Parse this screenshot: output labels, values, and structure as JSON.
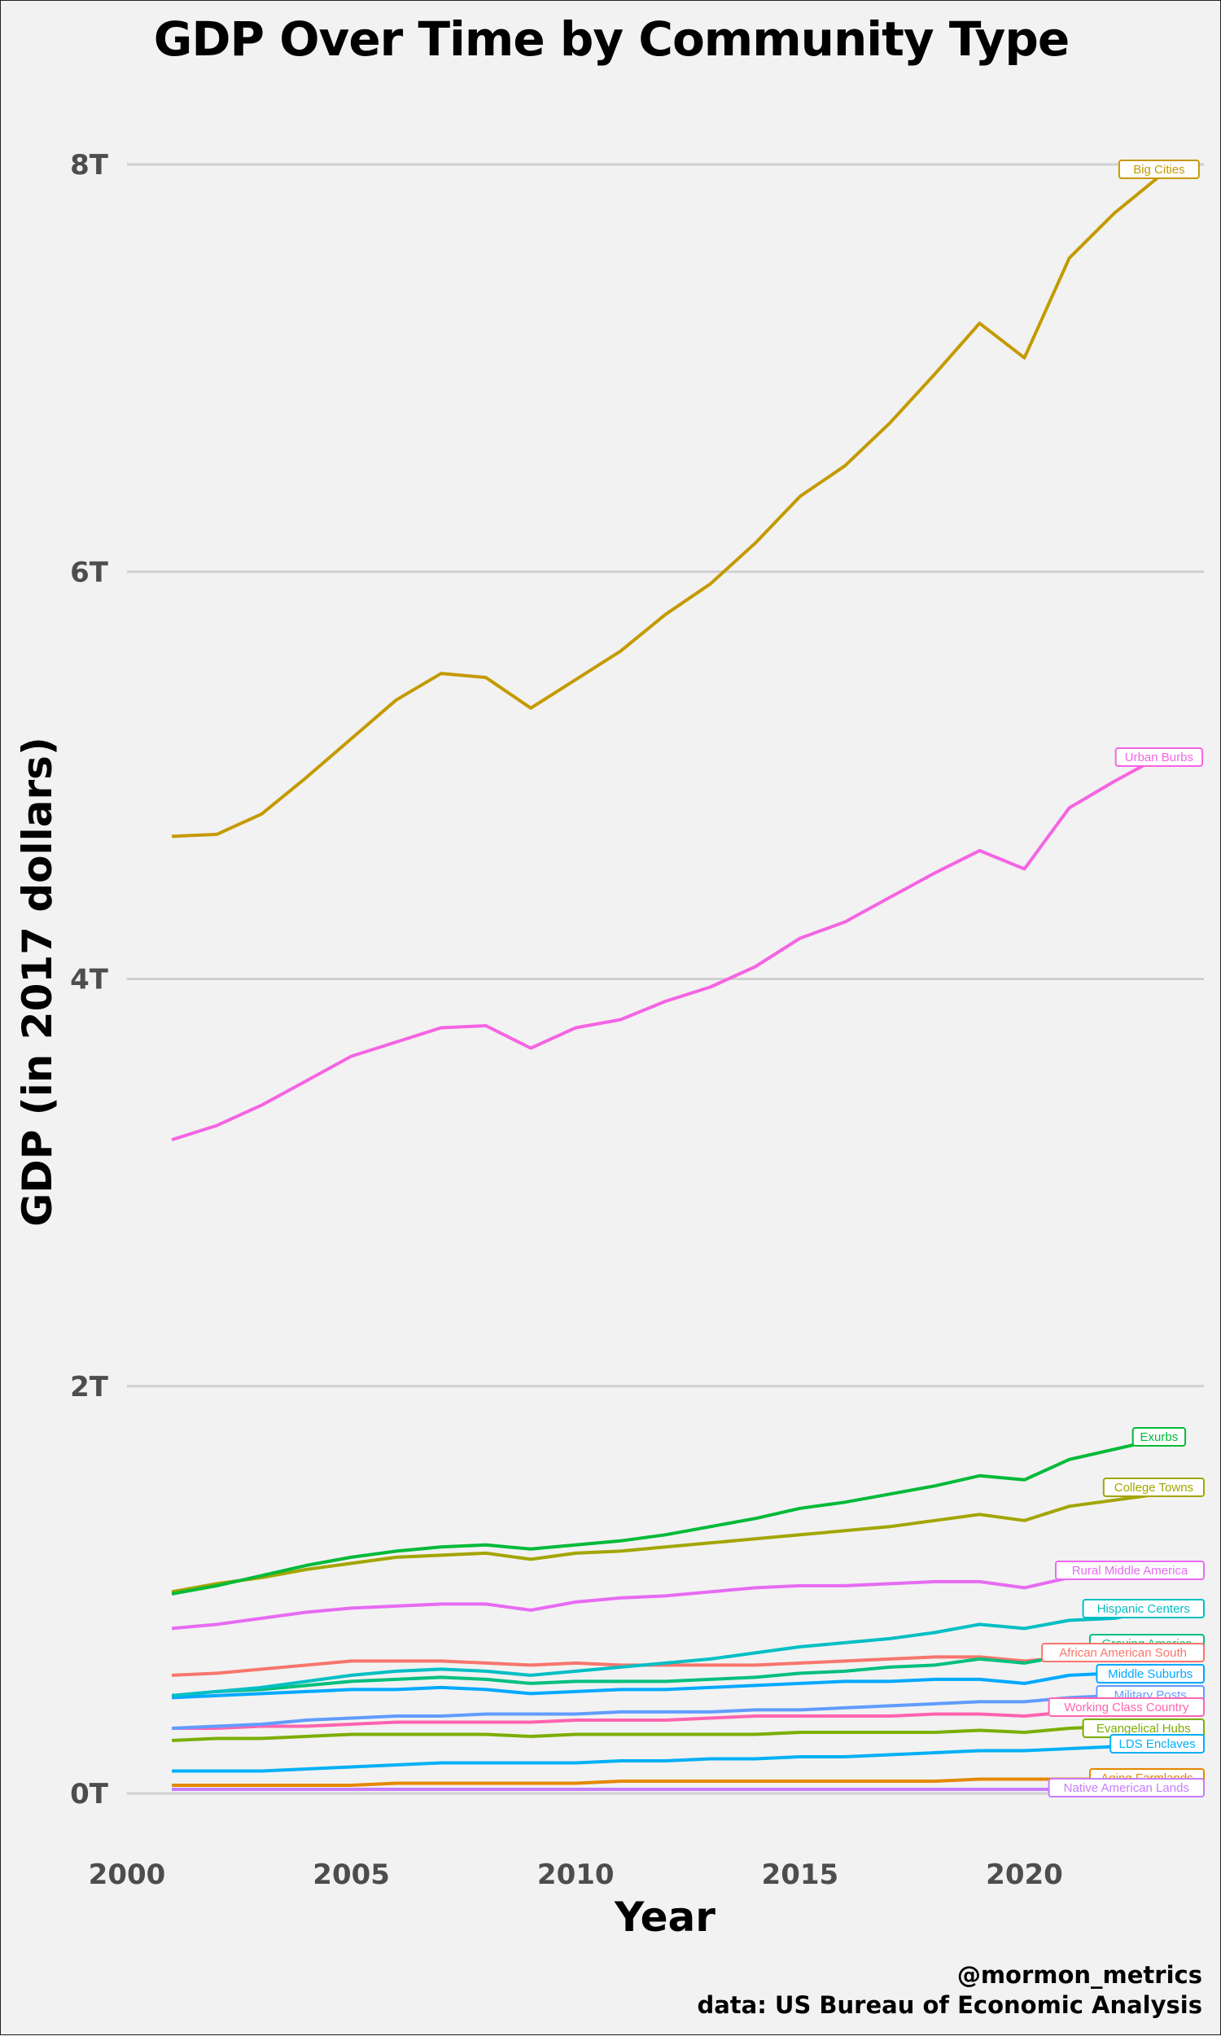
{
  "chart_data": {
    "type": "line",
    "title": "GDP Over Time by Community Type",
    "xlabel": "Year",
    "ylabel": "GDP (in 2017 dollars)",
    "xlim": [
      2000,
      2024
    ],
    "ylim": [
      0,
      8.3
    ],
    "x_ticks": [
      2000,
      2005,
      2010,
      2015,
      2020
    ],
    "x_tick_labels": [
      "2000",
      "2005",
      "2010",
      "2015",
      "2020"
    ],
    "y_ticks": [
      0,
      2,
      4,
      6,
      8
    ],
    "y_tick_labels": [
      "0T",
      "2T",
      "4T",
      "6T",
      "8T"
    ],
    "y_units": "trillions of 2017 dollars",
    "grid": true,
    "legend": "inline labels at line ends",
    "x": [
      2001,
      2002,
      2003,
      2004,
      2005,
      2006,
      2007,
      2008,
      2009,
      2010,
      2011,
      2012,
      2013,
      2014,
      2015,
      2016,
      2017,
      2018,
      2019,
      2020,
      2021,
      2022,
      2023
    ],
    "series": [
      {
        "name": "Big Cities",
        "color": "#C49A00",
        "values": [
          4.7,
          4.71,
          4.81,
          4.99,
          5.18,
          5.37,
          5.5,
          5.48,
          5.33,
          5.47,
          5.61,
          5.79,
          5.94,
          6.14,
          6.37,
          6.52,
          6.73,
          6.97,
          7.22,
          7.05,
          7.54,
          7.76,
          7.94
        ]
      },
      {
        "name": "Urban Burbs",
        "color": "#F564E3",
        "values": [
          3.21,
          3.28,
          3.38,
          3.5,
          3.62,
          3.69,
          3.76,
          3.77,
          3.66,
          3.76,
          3.8,
          3.89,
          3.96,
          4.06,
          4.2,
          4.28,
          4.4,
          4.52,
          4.63,
          4.54,
          4.84,
          4.97,
          5.09
        ]
      },
      {
        "name": "Exurbs",
        "color": "#00BA38",
        "values": [
          0.98,
          1.02,
          1.07,
          1.12,
          1.16,
          1.19,
          1.21,
          1.22,
          1.2,
          1.22,
          1.24,
          1.27,
          1.31,
          1.35,
          1.4,
          1.43,
          1.47,
          1.51,
          1.56,
          1.54,
          1.64,
          1.69,
          1.74
        ]
      },
      {
        "name": "College Towns",
        "color": "#A3A500",
        "values": [
          0.99,
          1.03,
          1.06,
          1.1,
          1.13,
          1.16,
          1.17,
          1.18,
          1.15,
          1.18,
          1.19,
          1.21,
          1.23,
          1.25,
          1.27,
          1.29,
          1.31,
          1.34,
          1.37,
          1.34,
          1.41,
          1.44,
          1.47
        ]
      },
      {
        "name": "Rural Middle America",
        "color": "#E76BF3",
        "values": [
          0.81,
          0.83,
          0.86,
          0.89,
          0.91,
          0.92,
          0.93,
          0.93,
          0.9,
          0.94,
          0.96,
          0.97,
          0.99,
          1.01,
          1.02,
          1.02,
          1.03,
          1.04,
          1.04,
          1.01,
          1.06,
          1.08,
          1.1
        ]
      },
      {
        "name": "Hispanic Centers",
        "color": "#00BFC4",
        "values": [
          0.48,
          0.5,
          0.52,
          0.55,
          0.58,
          0.6,
          0.61,
          0.6,
          0.58,
          0.6,
          0.62,
          0.64,
          0.66,
          0.69,
          0.72,
          0.74,
          0.76,
          0.79,
          0.83,
          0.81,
          0.85,
          0.86,
          0.9
        ]
      },
      {
        "name": "Graying America",
        "color": "#00BF7D",
        "values": [
          0.48,
          0.5,
          0.51,
          0.53,
          0.55,
          0.56,
          0.57,
          0.56,
          0.54,
          0.55,
          0.55,
          0.55,
          0.56,
          0.57,
          0.59,
          0.6,
          0.62,
          0.63,
          0.66,
          0.64,
          0.68,
          0.7,
          0.72
        ]
      },
      {
        "name": "African American South",
        "color": "#F8766D",
        "values": [
          0.58,
          0.59,
          0.61,
          0.63,
          0.65,
          0.65,
          0.65,
          0.64,
          0.63,
          0.64,
          0.63,
          0.63,
          0.63,
          0.63,
          0.64,
          0.65,
          0.66,
          0.67,
          0.67,
          0.65,
          0.67,
          0.68,
          0.69
        ]
      },
      {
        "name": "Middle Suburbs",
        "color": "#00A9FF",
        "values": [
          0.47,
          0.48,
          0.49,
          0.5,
          0.51,
          0.51,
          0.52,
          0.51,
          0.49,
          0.5,
          0.51,
          0.51,
          0.52,
          0.53,
          0.54,
          0.55,
          0.55,
          0.56,
          0.56,
          0.54,
          0.58,
          0.59,
          0.6
        ]
      },
      {
        "name": "Military Posts",
        "color": "#619CFF",
        "values": [
          0.32,
          0.33,
          0.34,
          0.36,
          0.37,
          0.38,
          0.38,
          0.39,
          0.39,
          0.39,
          0.4,
          0.4,
          0.4,
          0.41,
          0.41,
          0.42,
          0.43,
          0.44,
          0.45,
          0.45,
          0.47,
          0.48,
          0.49
        ]
      },
      {
        "name": "Working Class Country",
        "color": "#FF64B0",
        "values": [
          0.32,
          0.32,
          0.33,
          0.33,
          0.34,
          0.35,
          0.35,
          0.35,
          0.35,
          0.36,
          0.36,
          0.36,
          0.37,
          0.38,
          0.38,
          0.38,
          0.38,
          0.39,
          0.39,
          0.38,
          0.4,
          0.41,
          0.42
        ]
      },
      {
        "name": "Evangelical Hubs",
        "color": "#7CAE00",
        "values": [
          0.26,
          0.27,
          0.27,
          0.28,
          0.29,
          0.29,
          0.29,
          0.29,
          0.28,
          0.29,
          0.29,
          0.29,
          0.29,
          0.29,
          0.3,
          0.3,
          0.3,
          0.3,
          0.31,
          0.3,
          0.32,
          0.33,
          0.34
        ]
      },
      {
        "name": "LDS Enclaves",
        "color": "#00B0F6",
        "values": [
          0.11,
          0.11,
          0.11,
          0.12,
          0.13,
          0.14,
          0.15,
          0.15,
          0.15,
          0.15,
          0.16,
          0.16,
          0.17,
          0.17,
          0.18,
          0.18,
          0.19,
          0.2,
          0.21,
          0.21,
          0.22,
          0.23,
          0.24
        ]
      },
      {
        "name": "Aging Farmlands",
        "color": "#E58700",
        "values": [
          0.04,
          0.04,
          0.04,
          0.04,
          0.04,
          0.05,
          0.05,
          0.05,
          0.05,
          0.05,
          0.06,
          0.06,
          0.06,
          0.06,
          0.06,
          0.06,
          0.06,
          0.06,
          0.07,
          0.07,
          0.07,
          0.07,
          0.07
        ]
      },
      {
        "name": "Native American Lands",
        "color": "#C77CFF",
        "values": [
          0.02,
          0.02,
          0.02,
          0.02,
          0.02,
          0.02,
          0.02,
          0.02,
          0.02,
          0.02,
          0.02,
          0.02,
          0.02,
          0.02,
          0.02,
          0.02,
          0.02,
          0.02,
          0.02,
          0.02,
          0.02,
          0.02,
          0.02
        ]
      }
    ],
    "series_labels": [
      {
        "name": "Big Cities",
        "text": "Big Cities",
        "color": "#C49A00"
      },
      {
        "name": "Urban Burbs",
        "text": "Urban Burbs",
        "color": "#F564E3"
      },
      {
        "name": "Exurbs",
        "text": "Exurbs",
        "color": "#00BA38"
      },
      {
        "name": "College Towns",
        "text": "College Towns",
        "color": "#A3A500"
      },
      {
        "name": "Rural Middle America",
        "text": "Rural Middle America",
        "color": "#E76BF3"
      },
      {
        "name": "Hispanic Centers",
        "text": "Hispanic Centers",
        "color": "#00BFC4"
      },
      {
        "name": "Graying America",
        "text": "Graying America",
        "color": "#00BF7D"
      },
      {
        "name": "African American South",
        "text": "African American South",
        "color": "#F8766D"
      },
      {
        "name": "Middle Suburbs",
        "text": "Middle Suburbs",
        "color": "#00A9FF"
      },
      {
        "name": "Military Posts",
        "text": "Military Posts",
        "color": "#619CFF"
      },
      {
        "name": "Working Class Country",
        "text": "Working Class Country",
        "color": "#FF64B0"
      },
      {
        "name": "Evangelical Hubs",
        "text": "Evangelical Hubs",
        "color": "#7CAE00"
      },
      {
        "name": "LDS Enclaves",
        "text": "LDS Enclaves",
        "color": "#00B0F6"
      },
      {
        "name": "Aging Farmlands",
        "text": "Aging Farmlands",
        "color": "#E58700"
      },
      {
        "name": "Native American Lands",
        "text": "Native American Lands",
        "color": "#C77CFF"
      }
    ]
  },
  "caption": {
    "handle": "@mormon_metrics",
    "source": "data: US Bureau of Economic Analysis"
  }
}
